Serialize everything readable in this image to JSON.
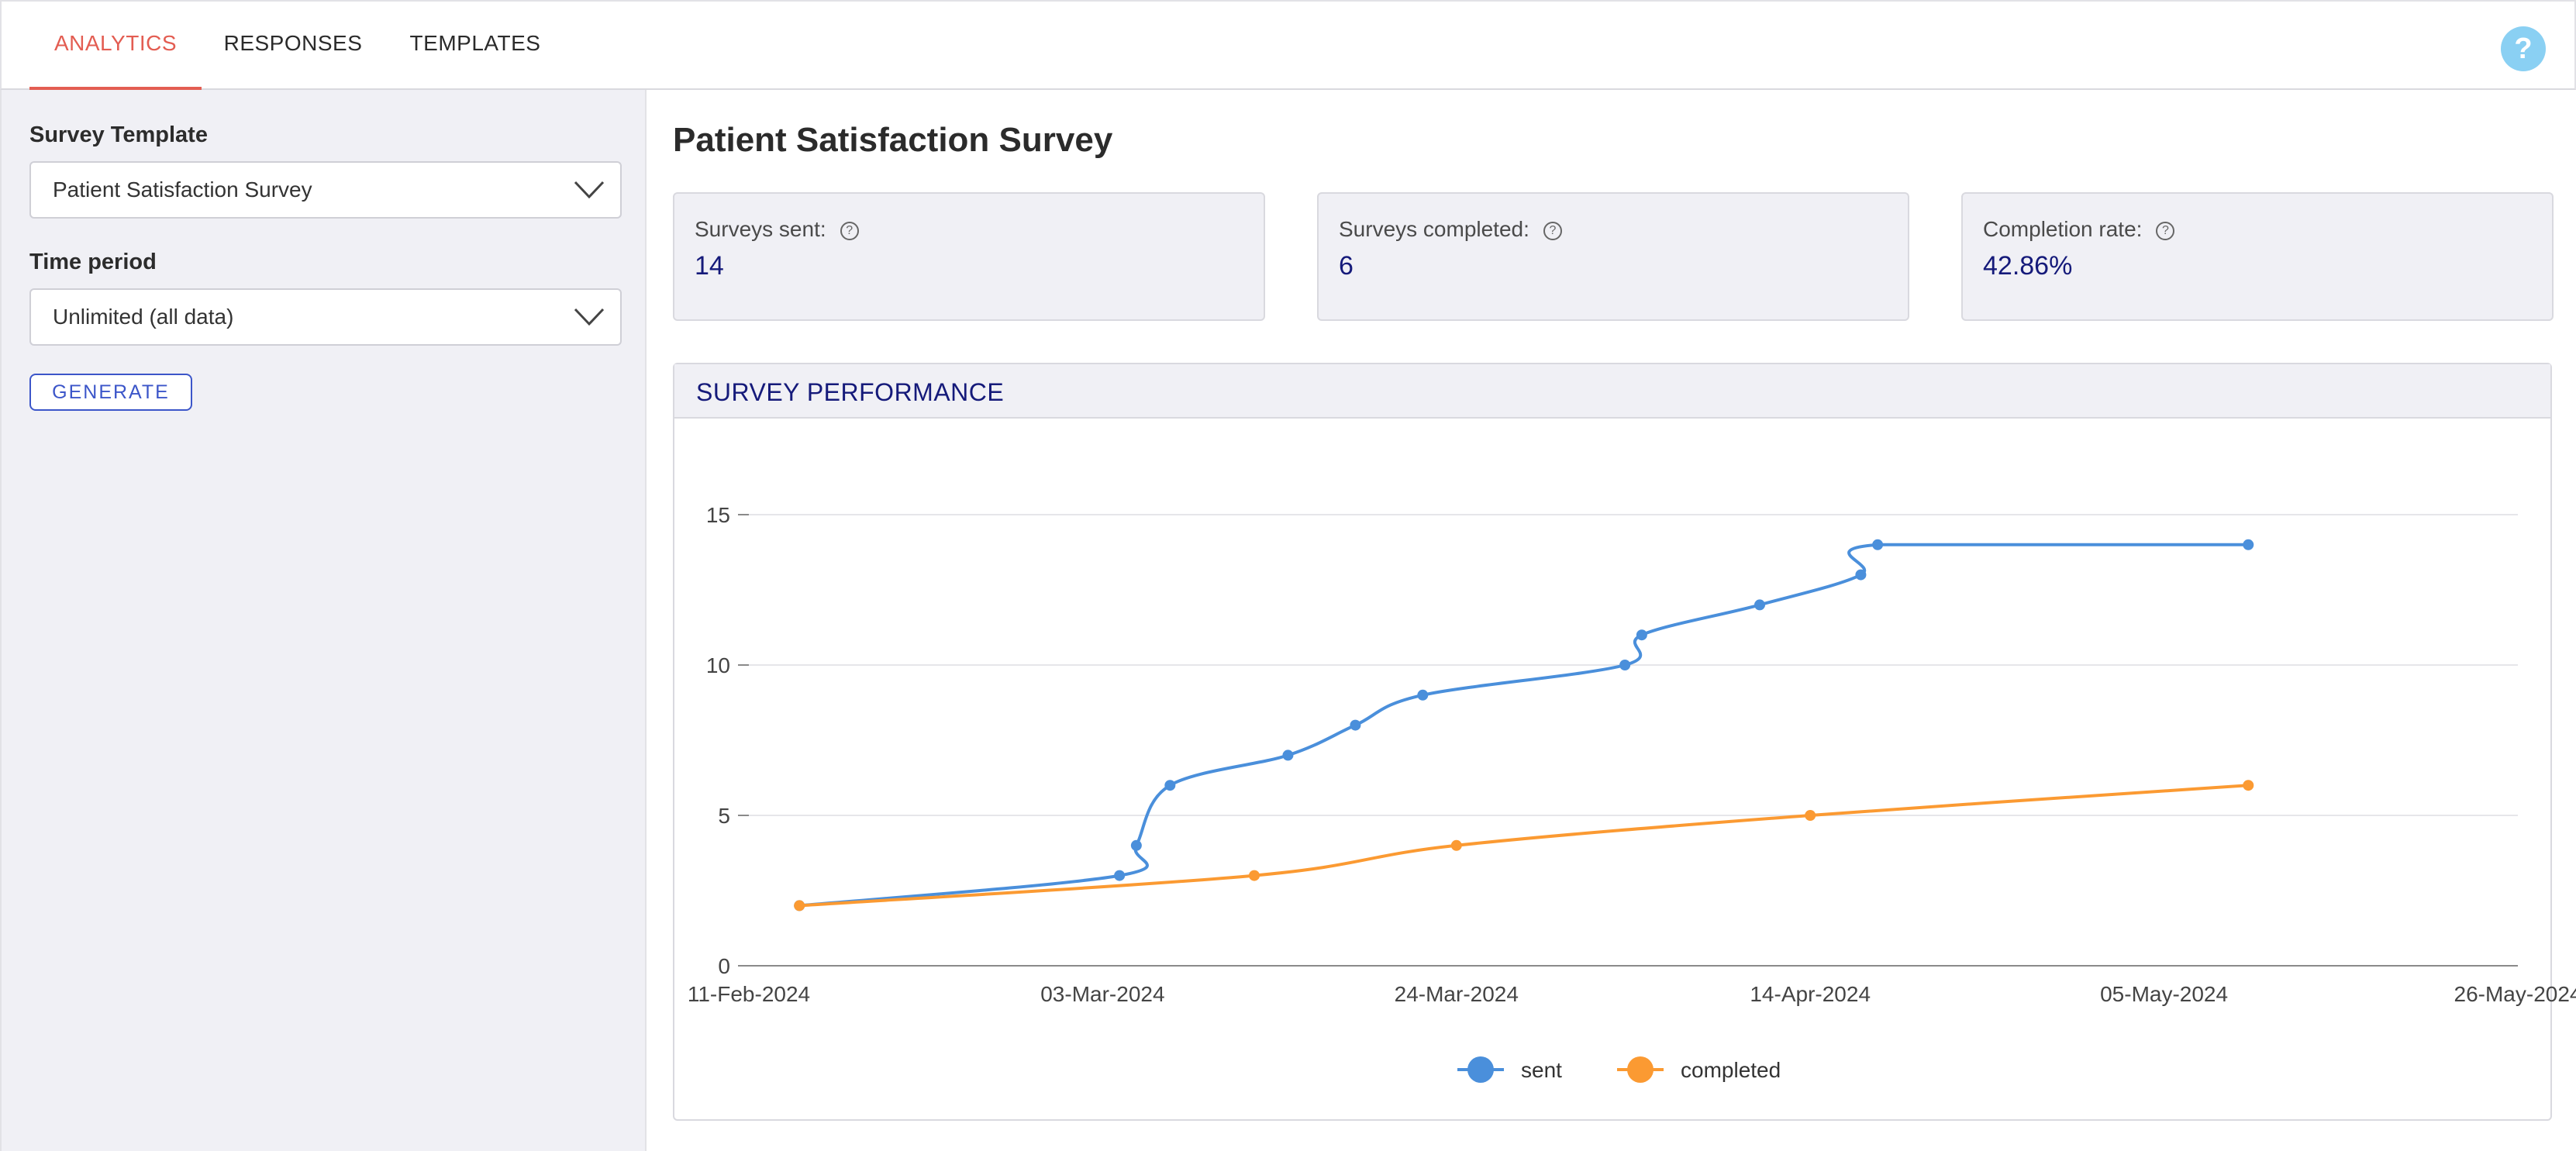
{
  "tabs": {
    "analytics": "ANALYTICS",
    "responses": "RESPONSES",
    "templates": "TEMPLATES"
  },
  "help": {
    "label": "?"
  },
  "sidebar": {
    "template_label": "Survey Template",
    "template_value": "Patient Satisfaction Survey",
    "period_label": "Time period",
    "period_value": "Unlimited (all data)",
    "generate_label": "GENERATE"
  },
  "main": {
    "title": "Patient Satisfaction Survey",
    "cards": [
      {
        "label": "Surveys sent:",
        "value": "14"
      },
      {
        "label": "Surveys completed:",
        "value": "6"
      },
      {
        "label": "Completion rate:",
        "value": "42.86%"
      }
    ],
    "performance_title": "SURVEY PERFORMANCE"
  },
  "colors": {
    "accent": "#e35d52",
    "sent": "#4a8fdb",
    "completed": "#fb9a32",
    "navy": "#151a7a"
  },
  "chart_data": {
    "type": "line",
    "title": "SURVEY PERFORMANCE",
    "xlabel": "",
    "ylabel": "",
    "ylim": [
      0,
      15
    ],
    "yticks": [
      0,
      5,
      10,
      15
    ],
    "xlim": [
      "2024-02-11",
      "2024-05-26"
    ],
    "xticks": [
      {
        "date": "2024-02-11",
        "label": "11-Feb-2024"
      },
      {
        "date": "2024-03-03",
        "label": "03-Mar-2024"
      },
      {
        "date": "2024-03-24",
        "label": "24-Mar-2024"
      },
      {
        "date": "2024-04-14",
        "label": "14-Apr-2024"
      },
      {
        "date": "2024-05-05",
        "label": "05-May-2024"
      },
      {
        "date": "2024-05-26",
        "label": "26-May-2024"
      }
    ],
    "legend_position": "bottom",
    "series": [
      {
        "name": "sent",
        "color": "#4a8fdb",
        "points": [
          {
            "x": "2024-02-14",
            "y": 2
          },
          {
            "x": "2024-03-04",
            "y": 3
          },
          {
            "x": "2024-03-05",
            "y": 4
          },
          {
            "x": "2024-03-07",
            "y": 6
          },
          {
            "x": "2024-03-14",
            "y": 7
          },
          {
            "x": "2024-03-18",
            "y": 8
          },
          {
            "x": "2024-03-22",
            "y": 9
          },
          {
            "x": "2024-04-03",
            "y": 10
          },
          {
            "x": "2024-04-04",
            "y": 11
          },
          {
            "x": "2024-04-11",
            "y": 12
          },
          {
            "x": "2024-04-17",
            "y": 13
          },
          {
            "x": "2024-04-18",
            "y": 14
          },
          {
            "x": "2024-05-10",
            "y": 14
          }
        ]
      },
      {
        "name": "completed",
        "color": "#fb9a32",
        "points": [
          {
            "x": "2024-02-14",
            "y": 2
          },
          {
            "x": "2024-03-12",
            "y": 3
          },
          {
            "x": "2024-03-24",
            "y": 4
          },
          {
            "x": "2024-04-14",
            "y": 5
          },
          {
            "x": "2024-05-10",
            "y": 6
          }
        ]
      }
    ]
  }
}
